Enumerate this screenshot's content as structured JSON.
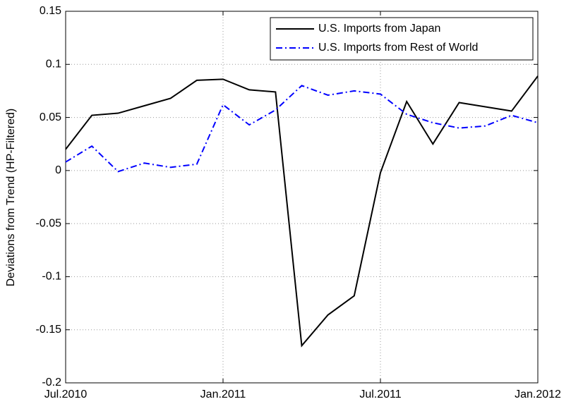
{
  "chart_data": {
    "type": "line",
    "ylabel": "Deviations from Trend (HP-Filtered)",
    "categories": [
      "Jul.2010",
      null,
      null,
      null,
      null,
      null,
      "Jan.2011",
      null,
      null,
      null,
      null,
      null,
      "Jul.2011",
      null,
      null,
      null,
      null,
      null,
      "Jan.2012"
    ],
    "series": [
      {
        "name": "U.S. Imports from Japan",
        "color": "#000000",
        "line_style": "solid",
        "values": [
          0.02,
          0.052,
          0.054,
          0.061,
          0.068,
          0.085,
          0.086,
          0.076,
          0.074,
          -0.165,
          -0.136,
          -0.118,
          -0.002,
          0.065,
          0.025,
          0.064,
          0.06,
          0.056,
          0.089
        ]
      },
      {
        "name": "U.S. Imports from Rest of World",
        "color": "#0000ff",
        "line_style": "dash-dot",
        "values": [
          0.008,
          0.023,
          -0.001,
          0.007,
          0.003,
          0.006,
          0.062,
          0.043,
          0.057,
          0.08,
          0.071,
          0.075,
          0.072,
          0.053,
          0.045,
          0.04,
          0.042,
          0.052,
          0.045
        ]
      }
    ],
    "ylim": [
      -0.2,
      0.15
    ],
    "yticks": [
      -0.2,
      -0.15,
      -0.1,
      -0.05,
      0,
      0.05,
      0.1,
      0.15
    ],
    "grid": true,
    "legend": "upper right"
  }
}
